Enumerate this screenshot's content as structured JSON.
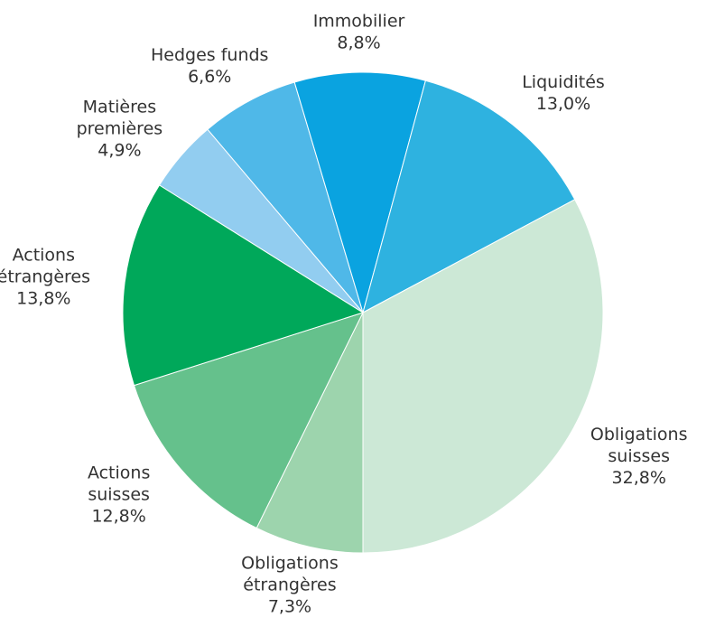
{
  "chart_data": {
    "type": "pie",
    "categories": [
      [
        "Obligations",
        "étrangères"
      ],
      [
        "Actions",
        "suisses"
      ],
      [
        "Actions",
        "étrangères"
      ],
      [
        "Matières",
        "premières"
      ],
      [
        "Hedges funds"
      ],
      [
        "Immobilier"
      ],
      [
        "Liquidités"
      ],
      [
        "Obligations",
        "suisses"
      ]
    ],
    "values": [
      7.3,
      12.8,
      13.8,
      4.9,
      6.6,
      8.8,
      13.0,
      32.8
    ],
    "value_labels": [
      "7,3%",
      "12,8%",
      "13,8%",
      "4,9%",
      "6,6%",
      "8,8%",
      "13,0%",
      "32,8%"
    ],
    "colors": [
      "#9dd4ad",
      "#65c18c",
      "#00a85a",
      "#92cdf0",
      "#4fb8e8",
      "#0aa3e0",
      "#2eb2e0",
      "#cce8d6"
    ]
  }
}
